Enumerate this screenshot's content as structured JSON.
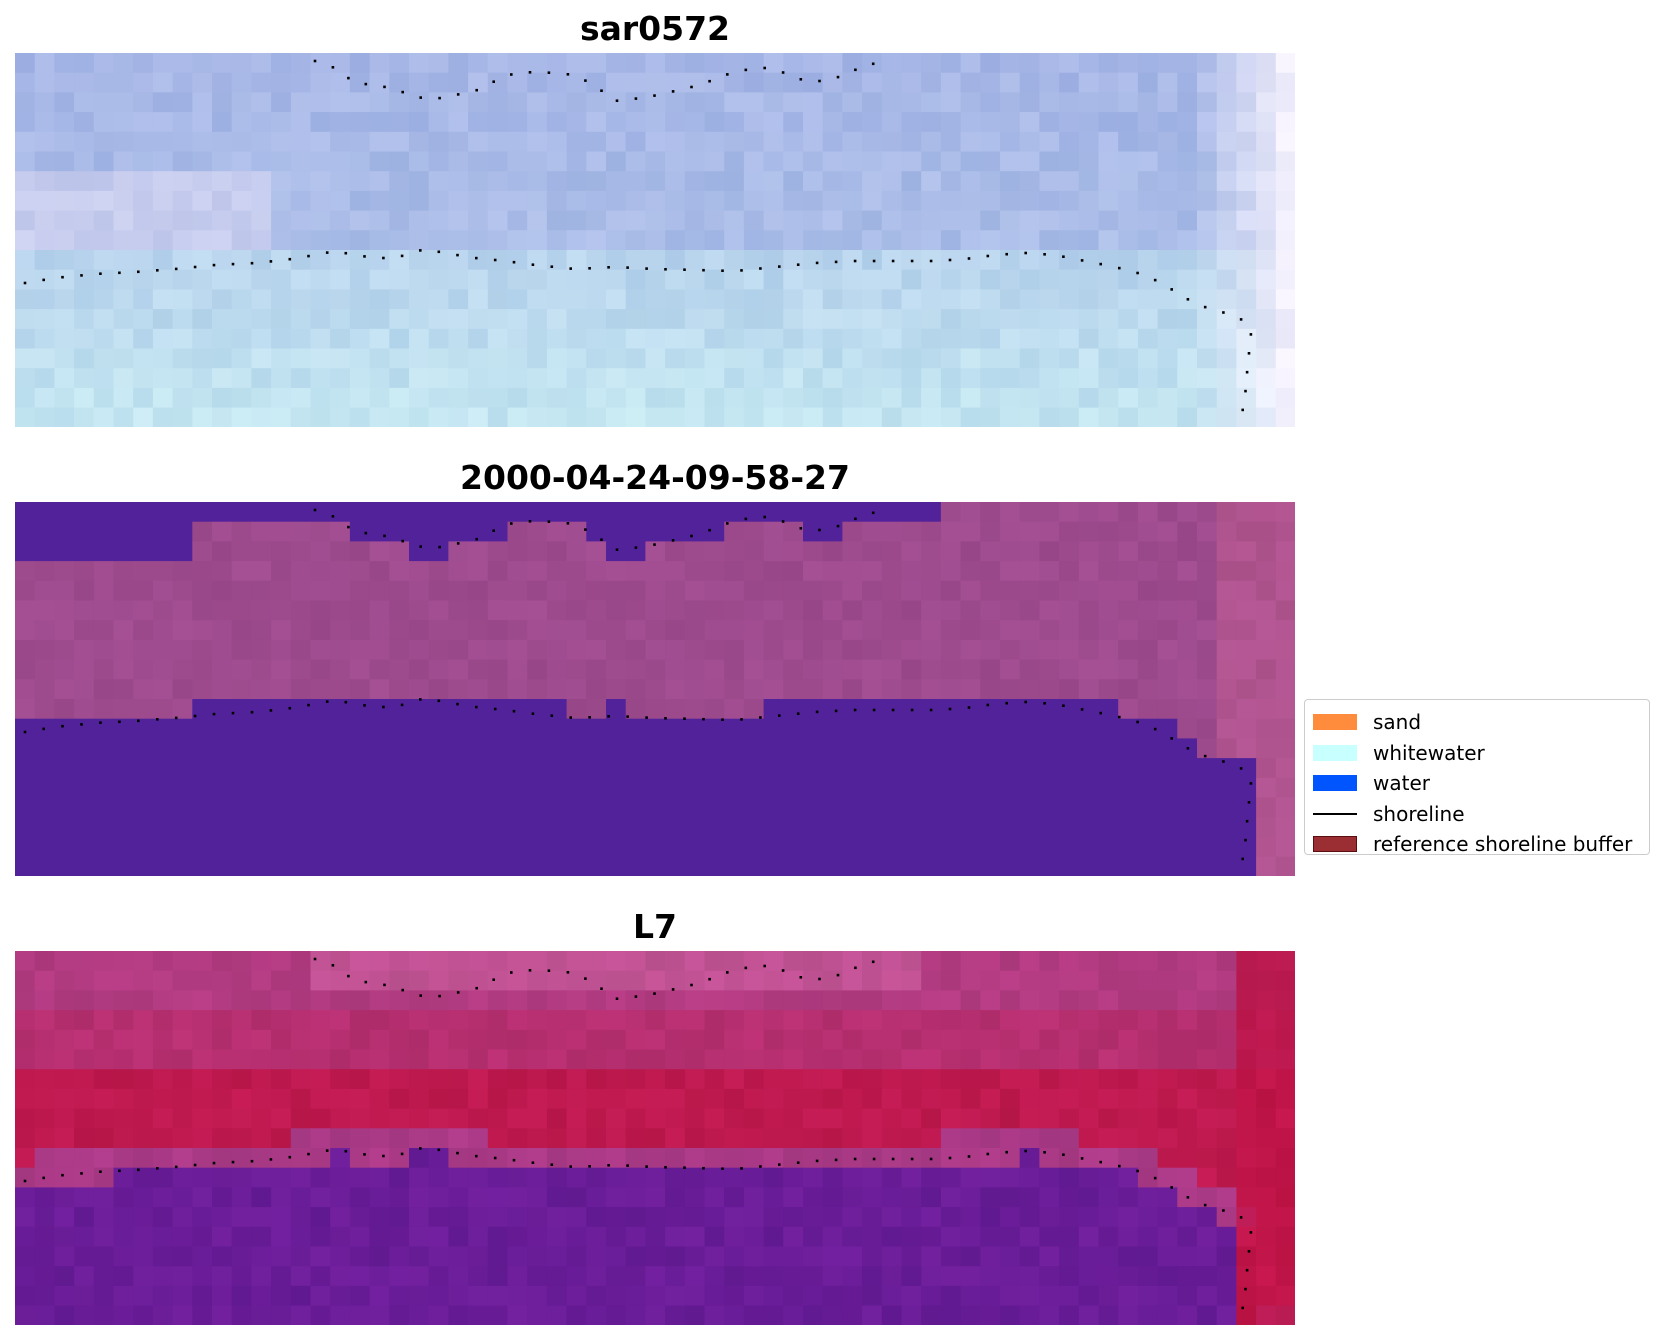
{
  "panels": [
    {
      "title": "sar0572",
      "kind": "rgb"
    },
    {
      "title": "2000-04-24-09-58-27",
      "kind": "classified"
    },
    {
      "title": "L7",
      "kind": "index"
    }
  ],
  "legend": {
    "items": [
      {
        "label": "sand",
        "color": "#ff8c3c",
        "type": "patch"
      },
      {
        "label": "whitewater",
        "color": "#c8ffff",
        "type": "patch"
      },
      {
        "label": "water",
        "color": "#0055ff",
        "type": "patch"
      },
      {
        "label": "shoreline",
        "color": "#000000",
        "type": "line"
      },
      {
        "label": "reference shoreline buffer",
        "color": "#9a2e32",
        "edge": "#5a0e10",
        "type": "patch"
      }
    ]
  },
  "colors": {
    "classified_water": "#52229a",
    "classified_land": "#9e4b8e",
    "classified_land_edge": "#b7588f",
    "index_low": "#6a1d98",
    "index_high": "#c01448",
    "rgb_top": "#a6b6e6",
    "rgb_bottom": "#c3e6f1",
    "shoreline": "#000000"
  }
}
